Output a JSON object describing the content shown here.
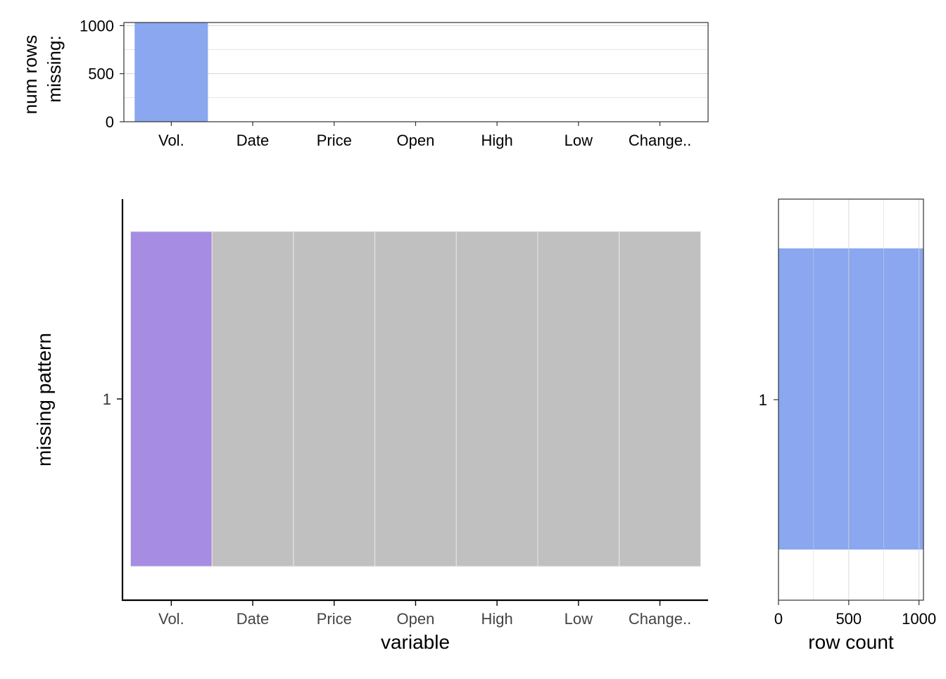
{
  "colors": {
    "missing_bar": "#8aa7ef",
    "missing_cell": "#a68ce2",
    "present_cell": "#c0c0c0",
    "grid": "#d3d3d3",
    "axis": "#000000",
    "text": "#333333"
  },
  "chart_data": [
    {
      "id": "top",
      "type": "bar",
      "categories": [
        "Vol.",
        "Date",
        "Price",
        "Open",
        "High",
        "Low",
        "Change.."
      ],
      "values": [
        1032,
        0,
        0,
        0,
        0,
        0,
        0
      ],
      "xlabel": "",
      "ylabel_lines": [
        "num rows",
        "missing:"
      ],
      "ylim": [
        0,
        1032
      ],
      "yticks": [
        0,
        500,
        1000
      ],
      "grid": true
    },
    {
      "id": "main",
      "type": "heatmap",
      "xcategories": [
        "Vol.",
        "Date",
        "Price",
        "Open",
        "High",
        "Low",
        "Change.."
      ],
      "ycategories": [
        "1"
      ],
      "cells": [
        [
          1,
          0,
          0,
          0,
          0,
          0,
          0
        ]
      ],
      "xlabel": "variable",
      "ylabel": "missing pattern",
      "grid": false
    },
    {
      "id": "right",
      "type": "bar",
      "orientation": "horizontal",
      "categories": [
        "1"
      ],
      "values": [
        1032
      ],
      "xlabel": "row count",
      "ylabel": "",
      "xlim": [
        0,
        1032
      ],
      "xticks": [
        0,
        500,
        1000
      ],
      "grid": true
    }
  ]
}
